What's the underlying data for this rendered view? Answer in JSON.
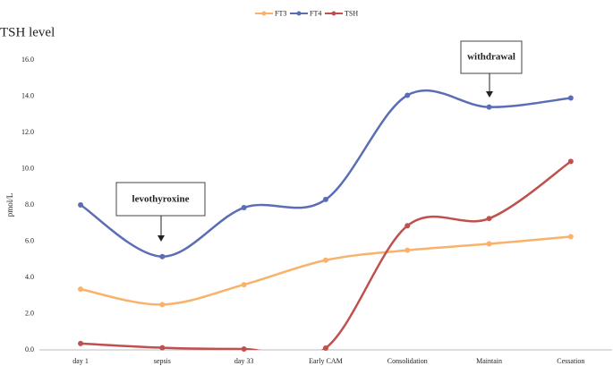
{
  "chart_data": {
    "type": "line",
    "title": "TSH level",
    "y_label": "pmol/L",
    "categories": [
      "day 1",
      "sepsis",
      "day 33",
      "Early CAM",
      "Consolidation",
      "Maintain",
      "Cessation"
    ],
    "series": [
      {
        "name": "FT3",
        "color": "#f8b26a",
        "values": [
          3.35,
          2.5,
          3.6,
          4.95,
          5.5,
          5.85,
          6.25
        ]
      },
      {
        "name": "FT4",
        "color": "#5b6db5",
        "values": [
          8.0,
          5.15,
          7.85,
          8.3,
          14.05,
          13.4,
          13.9
        ]
      },
      {
        "name": "TSH",
        "color": "#c0504d",
        "values": [
          0.35,
          0.12,
          0.05,
          0.1,
          6.85,
          7.25,
          10.4
        ]
      }
    ],
    "ylim": [
      0,
      16
    ],
    "yticks": [
      {
        "value": 0,
        "label": "0.0"
      },
      {
        "value": 2,
        "label": "2.0"
      },
      {
        "value": 4,
        "label": "4.0"
      },
      {
        "value": 6,
        "label": "6.0"
      },
      {
        "value": 8,
        "label": "8.0"
      },
      {
        "value": 10,
        "label": "10.0"
      },
      {
        "value": 12,
        "label": "12.0"
      },
      {
        "value": 14,
        "label": "14.0"
      },
      {
        "value": 16,
        "label": "16.0"
      }
    ],
    "smooth": true,
    "legend": "top",
    "annotations": [
      {
        "text": "levothyroxine"
      },
      {
        "text": "withdrawal"
      }
    ]
  }
}
